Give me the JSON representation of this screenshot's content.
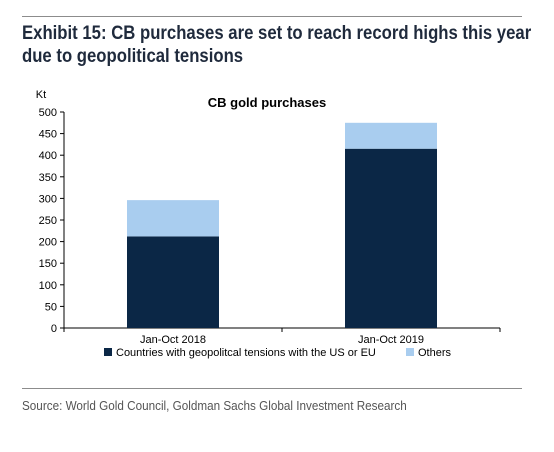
{
  "exhibit": {
    "title_line1": "Exhibit 15: CB purchases are set to reach record highs this year",
    "title_line2": "due to geopolitical tensions"
  },
  "source": "Source: World Gold Council, Goldman Sachs Global Investment Research",
  "colors": {
    "series_geopolitical": "#0b2746",
    "series_others": "#a9cdef",
    "axis": "#000000",
    "title_text": "#1f2a3c",
    "source_text": "#555555"
  },
  "chart_data": {
    "type": "bar",
    "stacked": true,
    "title": "CB gold purchases",
    "ylabel": "Kt",
    "xlabel": "",
    "categories": [
      "Jan-Oct 2018",
      "Jan-Oct 2019"
    ],
    "series": [
      {
        "name": "Countries with geopolitcal tensions with the US or EU",
        "values": [
          212,
          415
        ]
      },
      {
        "name": "Others",
        "values": [
          84,
          60
        ]
      }
    ],
    "ylim": [
      0,
      500
    ],
    "yticks": [
      0,
      50,
      100,
      150,
      200,
      250,
      300,
      350,
      400,
      450,
      500
    ],
    "grid": false,
    "legend_position": "bottom"
  }
}
